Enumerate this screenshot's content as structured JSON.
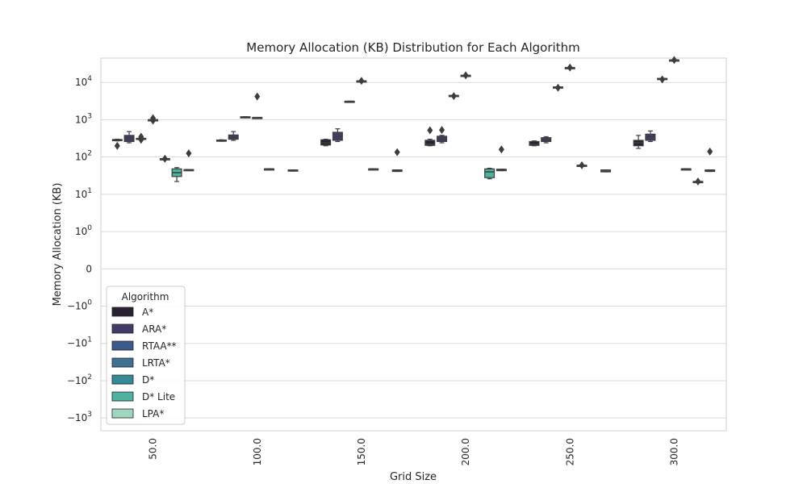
{
  "chart_data": {
    "type": "box",
    "title": "Memory Allocation (KB) Distribution for Each Algorithm",
    "xlabel": "Grid Size",
    "ylabel": "Memory Allocation (KB)",
    "yscale": "symlog",
    "ylim": [
      -2200,
      45000
    ],
    "grid": "y",
    "categories": [
      "50.0",
      "100.0",
      "150.0",
      "200.0",
      "250.0",
      "300.0"
    ],
    "yticks": [
      {
        "value": 10000,
        "base": "10",
        "exp": "4"
      },
      {
        "value": 1000,
        "base": "10",
        "exp": "3"
      },
      {
        "value": 100,
        "base": "10",
        "exp": "2"
      },
      {
        "value": 10,
        "base": "10",
        "exp": "1"
      },
      {
        "value": 1,
        "base": "10",
        "exp": "0"
      },
      {
        "value": 0,
        "base": "0",
        "exp": ""
      },
      {
        "value": -1,
        "base": "−10",
        "exp": "0"
      },
      {
        "value": -10,
        "base": "−10",
        "exp": "1"
      },
      {
        "value": -100,
        "base": "−10",
        "exp": "2"
      },
      {
        "value": -1000,
        "base": "−10",
        "exp": "3"
      }
    ],
    "legend": {
      "title": "Algorithm",
      "position": "lower-left",
      "entries": [
        {
          "name": "A*",
          "color": "#2b1f33"
        },
        {
          "name": "ARA*",
          "color": "#413c67"
        },
        {
          "name": "RTAA**",
          "color": "#3d5a8e"
        },
        {
          "name": "LRTA*",
          "color": "#3e7193"
        },
        {
          "name": "D*",
          "color": "#348a98"
        },
        {
          "name": "D* Lite",
          "color": "#4fb1a0"
        },
        {
          "name": "LPA*",
          "color": "#9fd6bd"
        }
      ]
    },
    "series": [
      {
        "name": "A*",
        "boxes": [
          {
            "whislo": 270,
            "q1": 275,
            "med": 285,
            "q3": 295,
            "whishi": 300,
            "fliers": [
              200
            ]
          },
          {
            "whislo": 265,
            "q1": 268,
            "med": 275,
            "q3": 285,
            "whishi": 290,
            "fliers": []
          },
          {
            "whislo": 200,
            "q1": 210,
            "med": 240,
            "q3": 290,
            "whishi": 300,
            "fliers": []
          },
          {
            "whislo": 200,
            "q1": 205,
            "med": 220,
            "q3": 280,
            "whishi": 300,
            "fliers": [
              520
            ]
          },
          {
            "whislo": 200,
            "q1": 205,
            "med": 220,
            "q3": 260,
            "whishi": 270,
            "fliers": []
          },
          {
            "whislo": 170,
            "q1": 200,
            "med": 240,
            "q3": 280,
            "whishi": 380,
            "fliers": []
          }
        ]
      },
      {
        "name": "ARA*",
        "boxes": [
          {
            "whislo": 240,
            "q1": 260,
            "med": 320,
            "q3": 380,
            "whishi": 480,
            "fliers": []
          },
          {
            "whislo": 280,
            "q1": 300,
            "med": 340,
            "q3": 390,
            "whishi": 480,
            "fliers": []
          },
          {
            "whislo": 260,
            "q1": 280,
            "med": 350,
            "q3": 460,
            "whishi": 570,
            "fliers": []
          },
          {
            "whislo": 240,
            "q1": 260,
            "med": 300,
            "q3": 360,
            "whishi": 380,
            "fliers": [
              530
            ]
          },
          {
            "whislo": 240,
            "q1": 260,
            "med": 280,
            "q3": 330,
            "whishi": 350,
            "fliers": []
          },
          {
            "whislo": 260,
            "q1": 280,
            "med": 340,
            "q3": 410,
            "whishi": 500,
            "fliers": []
          }
        ]
      },
      {
        "name": "RTAA**",
        "boxes": [
          {
            "whislo": 300,
            "q1": 305,
            "med": 310,
            "q3": 318,
            "whishi": 320,
            "fliers": [
              290,
              350
            ]
          },
          {
            "whislo": 1150,
            "q1": 1160,
            "med": 1180,
            "q3": 1200,
            "whishi": 1210,
            "fliers": []
          },
          {
            "whislo": 3100,
            "q1": 3110,
            "med": 3120,
            "q3": 3130,
            "whishi": 3140,
            "fliers": []
          },
          {
            "whislo": 4400,
            "q1": 4420,
            "med": 4450,
            "q3": 4480,
            "whishi": 4500,
            "fliers": [
              4300
            ]
          },
          {
            "whislo": 7400,
            "q1": 7450,
            "med": 7500,
            "q3": 7550,
            "whishi": 7600,
            "fliers": [
              7200
            ]
          },
          {
            "whislo": 12500,
            "q1": 12600,
            "med": 12700,
            "q3": 12800,
            "whishi": 12900,
            "fliers": [
              12000
            ]
          }
        ]
      },
      {
        "name": "LRTA*",
        "boxes": [
          {
            "whislo": 1000,
            "q1": 1000,
            "med": 1000,
            "q3": 1000,
            "whishi": 1000,
            "fliers": [
              950,
              1100
            ]
          },
          {
            "whislo": 1150,
            "q1": 1150,
            "med": 1150,
            "q3": 1150,
            "whishi": 1150,
            "fliers": [
              4200
            ]
          },
          {
            "whislo": 11000,
            "q1": 11000,
            "med": 11000,
            "q3": 11000,
            "whishi": 11000,
            "fliers": [
              11000
            ]
          },
          {
            "whislo": 15500,
            "q1": 15500,
            "med": 15500,
            "q3": 15500,
            "whishi": 15500,
            "fliers": [
              15500
            ]
          },
          {
            "whislo": 25000,
            "q1": 25000,
            "med": 25000,
            "q3": 25000,
            "whishi": 25000,
            "fliers": [
              25000
            ]
          },
          {
            "whislo": 40000,
            "q1": 40000,
            "med": 40000,
            "q3": 40000,
            "whishi": 40000,
            "fliers": [
              40000
            ]
          }
        ]
      },
      {
        "name": "D*",
        "boxes": [
          {
            "whislo": 90,
            "q1": 90,
            "med": 90,
            "q3": 90,
            "whishi": 90,
            "fliers": [
              90
            ]
          },
          {
            "whislo": 48,
            "q1": 48,
            "med": 48,
            "q3": 48,
            "whishi": 48,
            "fliers": []
          },
          {
            "whislo": 48,
            "q1": 48,
            "med": 48,
            "q3": 48,
            "whishi": 48,
            "fliers": []
          },
          {
            "whislo": null,
            "q1": null,
            "med": null,
            "q3": null,
            "whishi": null,
            "fliers": []
          },
          {
            "whislo": 60,
            "q1": 60,
            "med": 60,
            "q3": 60,
            "whishi": 60,
            "fliers": [
              60
            ]
          },
          {
            "whislo": 48,
            "q1": 48,
            "med": 48,
            "q3": 48,
            "whishi": 48,
            "fliers": []
          }
        ]
      },
      {
        "name": "D* Lite",
        "boxes": [
          {
            "whislo": 22,
            "q1": 30,
            "med": 38,
            "q3": 48,
            "whishi": 52,
            "fliers": []
          },
          {
            "whislo": null,
            "q1": null,
            "med": null,
            "q3": null,
            "whishi": null,
            "fliers": []
          },
          {
            "whislo": null,
            "q1": null,
            "med": null,
            "q3": null,
            "whishi": null,
            "fliers": []
          },
          {
            "whislo": 26,
            "q1": 28,
            "med": 40,
            "q3": 48,
            "whishi": 50,
            "fliers": []
          },
          {
            "whislo": null,
            "q1": null,
            "med": null,
            "q3": null,
            "whishi": null,
            "fliers": []
          },
          {
            "whislo": 22,
            "q1": 22,
            "med": 22,
            "q3": 22,
            "whishi": 22,
            "fliers": [
              22
            ]
          }
        ]
      },
      {
        "name": "LPA*",
        "boxes": [
          {
            "whislo": 44,
            "q1": 44,
            "med": 45,
            "q3": 46,
            "whishi": 46,
            "fliers": [
              125
            ]
          },
          {
            "whislo": 42,
            "q1": 42,
            "med": 43,
            "q3": 45,
            "whishi": 45,
            "fliers": []
          },
          {
            "whislo": 41,
            "q1": 41,
            "med": 43,
            "q3": 45,
            "whishi": 45,
            "fliers": [
              135
            ]
          },
          {
            "whislo": 43,
            "q1": 43,
            "med": 45,
            "q3": 47,
            "whishi": 47,
            "fliers": [
              160
            ]
          },
          {
            "whislo": 40,
            "q1": 40,
            "med": 42,
            "q3": 45,
            "whishi": 45,
            "fliers": []
          },
          {
            "whislo": 41,
            "q1": 41,
            "med": 43,
            "q3": 45,
            "whishi": 45,
            "fliers": [
              140
            ]
          }
        ]
      }
    ]
  }
}
